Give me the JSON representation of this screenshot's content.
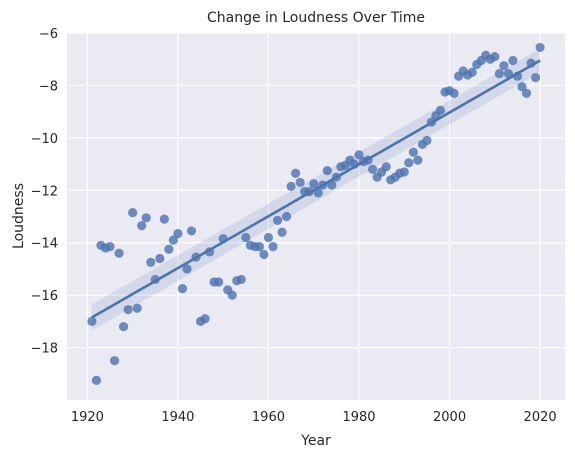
{
  "chart_data": {
    "type": "scatter",
    "title": "Change in Loudness Over Time",
    "xlabel": "Year",
    "ylabel": "Loudness",
    "xlim": [
      1915.5,
      2025.5
    ],
    "ylim": [
      -20,
      -6
    ],
    "xticks": [
      1920,
      1940,
      1960,
      1980,
      2000,
      2020
    ],
    "yticks": [
      -18,
      -16,
      -14,
      -12,
      -10,
      -8,
      -6
    ],
    "xtick_labels": [
      "1920",
      "1940",
      "1960",
      "1980",
      "2000",
      "2020"
    ],
    "ytick_labels": [
      "−18",
      "−16",
      "−14",
      "−12",
      "−10",
      "−8",
      "−6"
    ],
    "grid": true,
    "style": "seaborn-darkgrid",
    "colors": {
      "points": "#4c72b0",
      "line": "#4c72b0",
      "band": "#4c72b0",
      "background": "#eaeaf2",
      "grid": "#ffffff"
    },
    "regression": {
      "x": [
        1921,
        2020
      ],
      "y": [
        -16.85,
        -7.05
      ],
      "ci_lower_start": -16.35,
      "ci_upper_start": -17.35,
      "ci_lower_end": -6.6,
      "ci_upper_end": -7.5
    },
    "points": {
      "x": [
        1921,
        1922,
        1923,
        1924,
        1925,
        1926,
        1927,
        1928,
        1929,
        1930,
        1931,
        1932,
        1933,
        1934,
        1935,
        1936,
        1937,
        1938,
        1939,
        1940,
        1941,
        1942,
        1943,
        1944,
        1945,
        1946,
        1947,
        1948,
        1949,
        1950,
        1951,
        1952,
        1953,
        1954,
        1955,
        1956,
        1957,
        1958,
        1959,
        1960,
        1961,
        1962,
        1963,
        1964,
        1965,
        1966,
        1967,
        1968,
        1969,
        1970,
        1971,
        1972,
        1973,
        1974,
        1975,
        1976,
        1977,
        1978,
        1979,
        1980,
        1981,
        1982,
        1983,
        1984,
        1985,
        1986,
        1987,
        1988,
        1989,
        1990,
        1991,
        1992,
        1993,
        1994,
        1995,
        1996,
        1997,
        1998,
        1999,
        2000,
        2001,
        2002,
        2003,
        2004,
        2005,
        2006,
        2007,
        2008,
        2009,
        2010,
        2011,
        2012,
        2013,
        2014,
        2015,
        2016,
        2017,
        2018,
        2019,
        2020
      ],
      "y": [
        -17.0,
        -19.25,
        -14.1,
        -14.2,
        -14.15,
        -18.5,
        -14.4,
        -17.2,
        -16.55,
        -12.85,
        -16.5,
        -13.35,
        -13.05,
        -14.75,
        -15.4,
        -14.6,
        -13.1,
        -14.25,
        -13.9,
        -13.65,
        -15.75,
        -15.0,
        -13.55,
        -14.55,
        -17.0,
        -16.9,
        -14.35,
        -15.5,
        -15.5,
        -13.85,
        -15.8,
        -16.0,
        -15.45,
        -15.4,
        -13.8,
        -14.1,
        -14.15,
        -14.15,
        -14.45,
        -13.8,
        -14.15,
        -13.15,
        -13.6,
        -13.0,
        -11.85,
        -11.35,
        -11.7,
        -12.05,
        -12.05,
        -11.75,
        -12.1,
        -11.8,
        -11.25,
        -11.8,
        -11.5,
        -11.1,
        -11.05,
        -10.85,
        -11.0,
        -10.65,
        -10.9,
        -10.85,
        -11.2,
        -11.5,
        -11.3,
        -11.1,
        -11.6,
        -11.5,
        -11.35,
        -11.3,
        -10.95,
        -10.55,
        -10.85,
        -10.25,
        -10.1,
        -9.4,
        -9.15,
        -8.95,
        -8.25,
        -8.2,
        -8.3,
        -7.65,
        -7.45,
        -7.6,
        -7.5,
        -7.2,
        -7.05,
        -6.85,
        -7.0,
        -6.9,
        -7.55,
        -7.25,
        -7.55,
        -7.05,
        -7.65,
        -8.05,
        -8.3,
        -7.15,
        -7.7,
        -6.55
      ]
    }
  }
}
